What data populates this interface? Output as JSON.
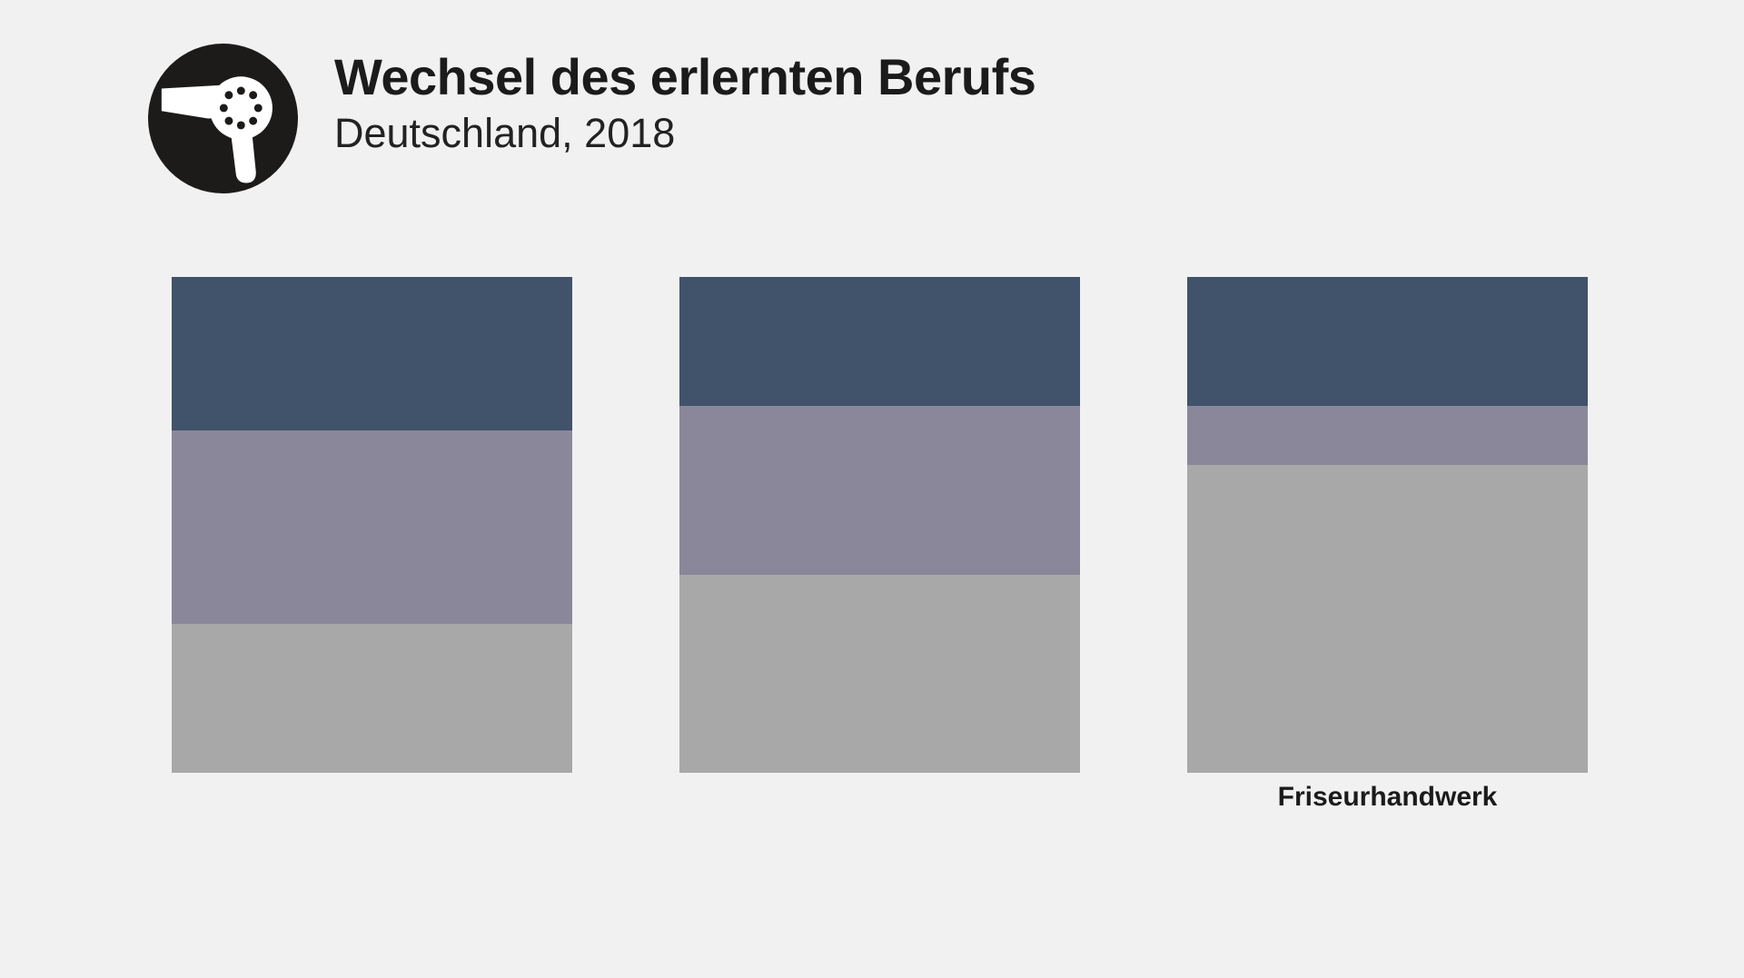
{
  "header": {
    "title": "Wechsel des erlernten Berufs",
    "subtitle": "Deutschland, 2018",
    "logo_icon": "hair-dryer-icon"
  },
  "colors": {
    "background": "#F1F1F2",
    "segment_dark_blue": "#41526B",
    "segment_purple_gray": "#8A879A",
    "segment_light_gray": "#A8A8A8",
    "text": "#1B1B1B",
    "logo_background": "#1D1B1A",
    "logo_foreground": "#FFFFFF"
  },
  "chart_data": {
    "type": "bar",
    "subtype": "stacked-vertical-100pct",
    "title": "Wechsel des erlernten Berufs",
    "subtitle": "Deutschland, 2018",
    "categories": [
      "",
      "",
      "Friseurhandwerk"
    ],
    "series": [
      {
        "name": "top-dark-blue",
        "color": "#41526B",
        "values": [
          31,
          26,
          26
        ]
      },
      {
        "name": "middle-purple-gray",
        "color": "#8A879A",
        "values": [
          39,
          34,
          12
        ]
      },
      {
        "name": "bottom-light-gray",
        "color": "#A8A8A8",
        "values": [
          30,
          40,
          62
        ]
      }
    ],
    "stack_order": "top-to-bottom",
    "value_unit": "percent of bar height",
    "ylim": [
      0,
      100
    ],
    "legend": "none",
    "axes": "none",
    "grid": false
  }
}
